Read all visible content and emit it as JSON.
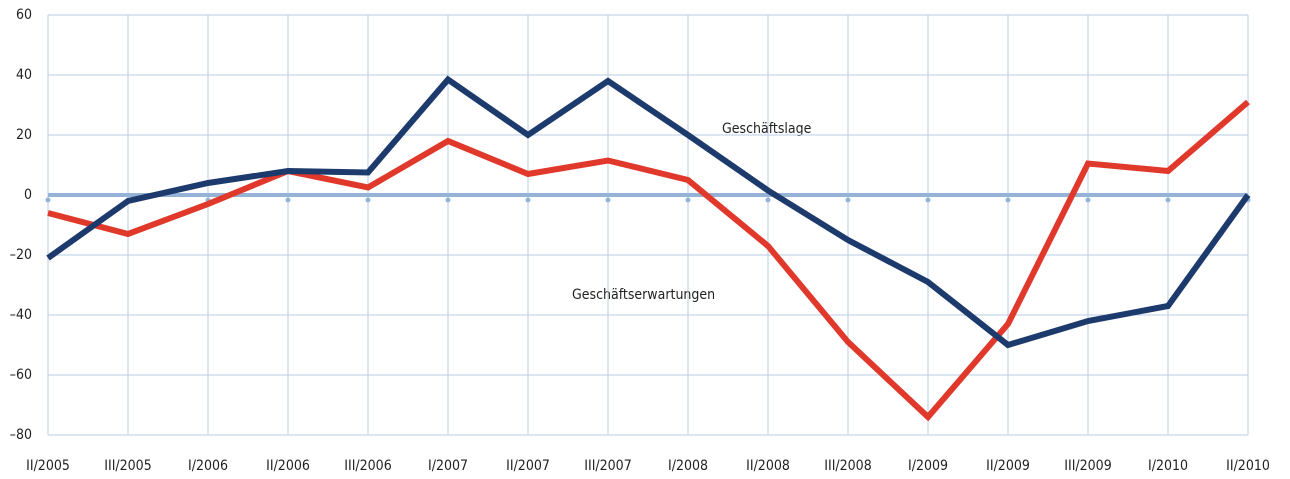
{
  "chart_data": {
    "type": "line",
    "categories": [
      "II/2005",
      "III/2005",
      "I/2006",
      "II/2006",
      "III/2006",
      "I/2007",
      "II/2007",
      "III/2007",
      "I/2008",
      "II/2008",
      "III/2008",
      "I/2009",
      "II/2009",
      "III/2009",
      "I/2010",
      "II/2010"
    ],
    "series": [
      {
        "name": "Geschäftslage",
        "color": "#1d3a6d",
        "values": [
          -21,
          -2,
          4,
          8,
          7.5,
          38.5,
          20,
          38,
          20,
          1.5,
          -15,
          -29,
          -50,
          -42,
          -37,
          0
        ]
      },
      {
        "name": "Geschäftserwartungen",
        "color": "#e0392b",
        "values": [
          -6,
          -13,
          -3,
          8,
          2.5,
          18,
          7,
          11.5,
          5,
          -17,
          -49,
          -74,
          -43,
          10.5,
          8,
          31
        ]
      }
    ],
    "ylim": [
      -80,
      60
    ],
    "yticks": [
      {
        "value": -80,
        "label": "–80"
      },
      {
        "value": -60,
        "label": "–60"
      },
      {
        "value": -40,
        "label": "–40"
      },
      {
        "value": -20,
        "label": "–20"
      },
      0,
      20,
      40,
      60
    ],
    "grid": true
  }
}
